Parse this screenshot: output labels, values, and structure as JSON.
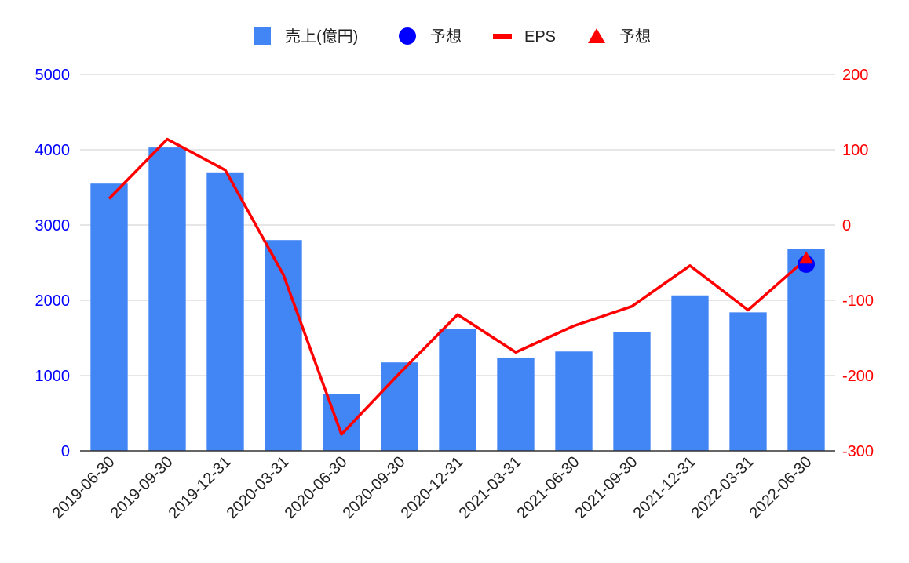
{
  "chart_data": {
    "type": "bar",
    "categories": [
      "2019-06-30",
      "2019-09-30",
      "2019-12-31",
      "2020-03-31",
      "2020-06-30",
      "2020-09-30",
      "2020-12-31",
      "2021-03-31",
      "2021-06-30",
      "2021-09-30",
      "2021-12-31",
      "2022-03-31",
      "2022-06-30"
    ],
    "series": [
      {
        "name": "売上(億円)",
        "type": "bar",
        "axis": "left",
        "color": "#4285f4",
        "values": [
          3550,
          4030,
          3700,
          2800,
          760,
          1175,
          1620,
          1240,
          1320,
          1575,
          2065,
          1840,
          2680
        ]
      },
      {
        "name": "予想",
        "type": "point",
        "marker": "circle",
        "axis": "left",
        "color": "#0000ff",
        "values": [
          null,
          null,
          null,
          null,
          null,
          null,
          null,
          null,
          null,
          null,
          null,
          null,
          2480
        ]
      },
      {
        "name": "EPS",
        "type": "line",
        "axis": "right",
        "color": "#ff0000",
        "values": [
          35,
          114,
          73,
          -66,
          -278,
          -197,
          -119,
          -169,
          -134,
          -108,
          -54,
          -113,
          -45
        ]
      },
      {
        "name": "予想",
        "type": "point",
        "marker": "triangle",
        "axis": "right",
        "color": "#ff0000",
        "values": [
          null,
          null,
          null,
          null,
          null,
          null,
          null,
          null,
          null,
          null,
          null,
          null,
          -45
        ]
      }
    ],
    "y_left": {
      "min": 0,
      "max": 5000,
      "ticks": [
        0,
        1000,
        2000,
        3000,
        4000,
        5000
      ],
      "color": "#0000ff"
    },
    "y_right": {
      "min": -300,
      "max": 200,
      "ticks": [
        -300,
        -200,
        -100,
        0,
        100,
        200
      ],
      "color": "#ff0000"
    },
    "grid": true,
    "legend_position": "top-center"
  }
}
